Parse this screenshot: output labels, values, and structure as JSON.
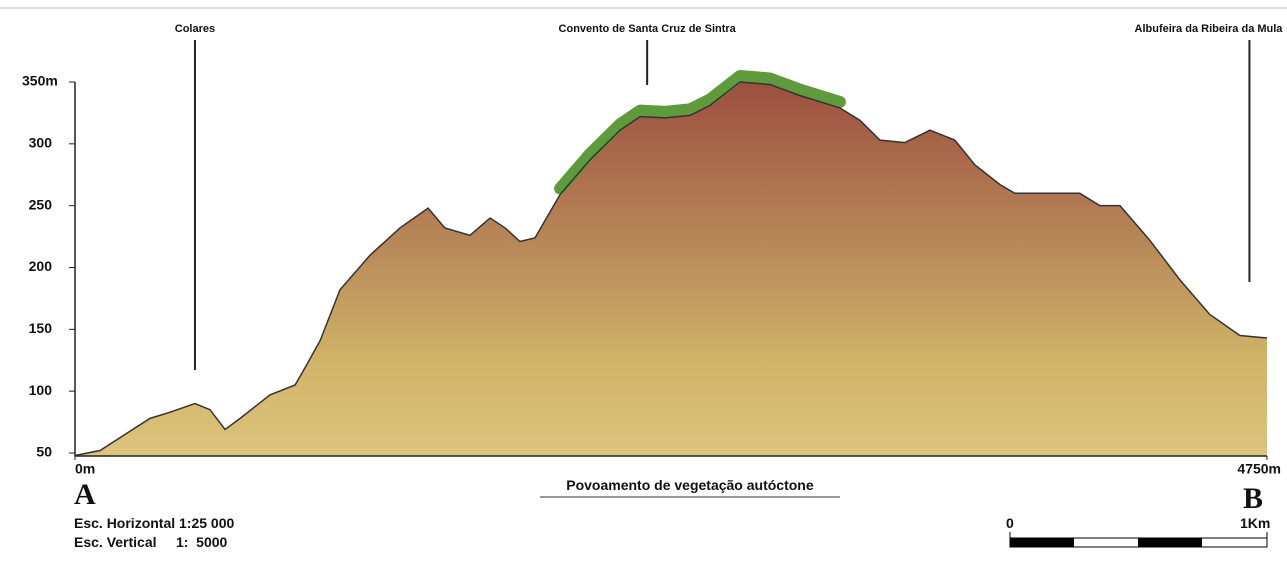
{
  "chart_data": {
    "type": "area",
    "x": [
      0,
      100,
      199,
      299,
      379,
      478,
      538,
      598,
      658,
      777,
      877,
      917,
      977,
      1056,
      1176,
      1295,
      1407,
      1474,
      1574,
      1654,
      1714,
      1773,
      1833,
      1933,
      2052,
      2172,
      2252,
      2351,
      2451,
      2530,
      2650,
      2769,
      2889,
      3048,
      3128,
      3208,
      3307,
      3407,
      3506,
      3586,
      3686,
      3745,
      3885,
      4004,
      4084,
      4164,
      4283,
      4403,
      4522,
      4642,
      4750
    ],
    "series": [
      {
        "color": "#b87a55",
        "values": [
          48,
          52,
          65,
          78,
          83,
          90,
          85,
          69,
          78,
          97,
          105,
          119,
          141,
          182,
          210,
          232,
          248,
          232,
          226,
          240,
          232,
          221,
          224,
          259,
          287,
          311,
          322,
          321,
          323,
          331,
          350,
          348,
          339,
          329,
          319,
          303,
          301,
          311,
          303,
          283,
          267,
          260,
          260,
          260,
          250,
          250,
          222,
          190,
          162,
          145,
          143
        ]
      }
    ],
    "xlim": [
      0,
      4750
    ],
    "xticks": [
      {
        "value": 0,
        "label": "0m"
      },
      {
        "value": 4750,
        "label": "4750m"
      }
    ],
    "ylim": [
      50,
      350
    ],
    "yticks": [
      {
        "value": 350,
        "label": "350m"
      },
      300,
      250,
      200,
      150,
      100,
      50
    ],
    "vegetation": {
      "label": "Povoamento de vegetação autóctone",
      "color": "#5f9a3c",
      "xrange": [
        1853,
        3048
      ]
    },
    "annotations": [
      {
        "text": "Colares",
        "x": 478
      },
      {
        "text": "Convento de Santa Cruz de Sintra",
        "x": 2280
      },
      {
        "text": "Albufeira da Ribeira da Mula",
        "x": 4680
      }
    ],
    "start_label": "A",
    "end_label": "B",
    "scale_horizontal": "Esc. Horizontal 1:25 000",
    "scale_vertical": "Esc. Vertical     1:  5000",
    "scale_bar": {
      "start_label": "0",
      "end_label": "1Km"
    }
  }
}
